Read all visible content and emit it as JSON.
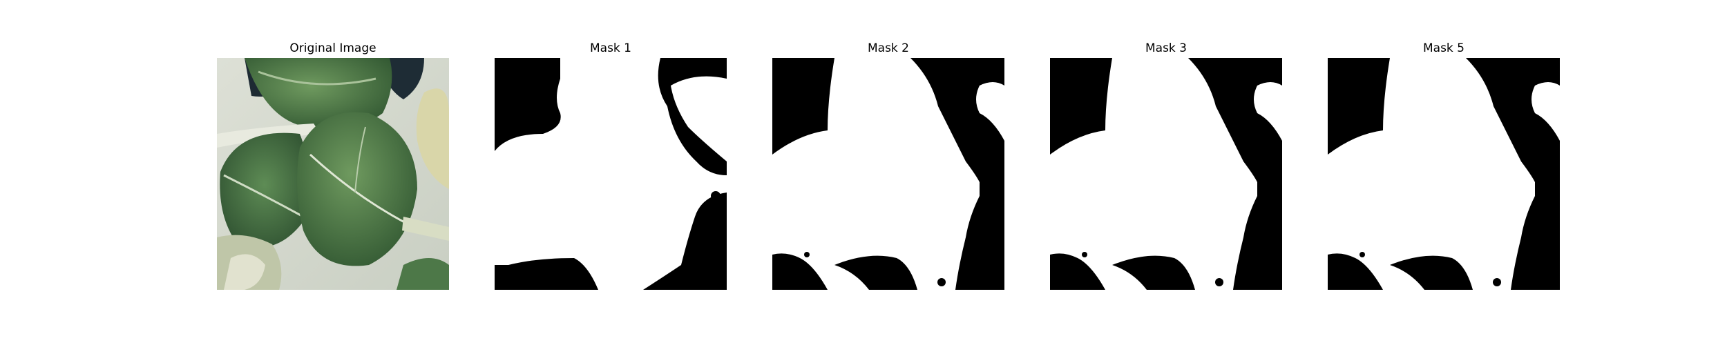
{
  "figure": {
    "panels": [
      {
        "id": "original",
        "title": "Original Image",
        "kind": "photo"
      },
      {
        "id": "mask-1",
        "title": "Mask 1",
        "kind": "binary-mask"
      },
      {
        "id": "mask-2",
        "title": "Mask 2",
        "kind": "binary-mask"
      },
      {
        "id": "mask-3",
        "title": "Mask 3",
        "kind": "binary-mask"
      },
      {
        "id": "mask-5",
        "title": "Mask 5",
        "kind": "binary-mask"
      }
    ]
  },
  "colors": {
    "background": "#ffffff",
    "mask_foreground": "#ffffff",
    "mask_background": "#000000",
    "leaf_dark": "#3f6a3a",
    "leaf_light": "#6e9a5c",
    "pot_light": "#dfe0d8"
  }
}
